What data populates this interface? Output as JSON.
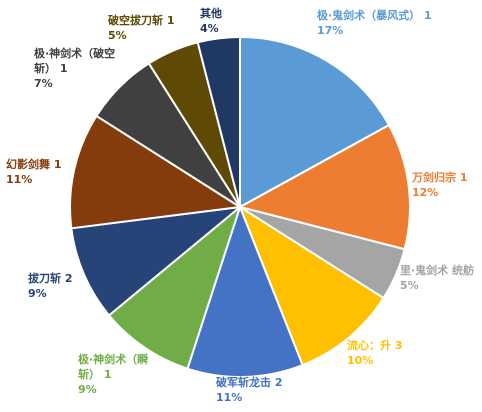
{
  "chart_data": {
    "type": "pie",
    "title": "",
    "slices": [
      {
        "label": "极·鬼剑术（暴风式）",
        "count": "1",
        "percent": "17%",
        "value": 17,
        "color": "#5B9BD5",
        "label_color": "#5B9BD5"
      },
      {
        "label": "万剑归宗",
        "count": "1",
        "percent": "12%",
        "value": 12,
        "color": "#ED7D31",
        "label_color": "#ED7D31"
      },
      {
        "label": "里·鬼剑术 统舫",
        "count": "",
        "percent": "5%",
        "value": 5,
        "color": "#A5A5A5",
        "label_color": "#A5A5A5"
      },
      {
        "label": "流心：升",
        "count": "3",
        "percent": "10%",
        "value": 10,
        "color": "#FFC000",
        "label_color": "#FFC000"
      },
      {
        "label": "破军斩龙击",
        "count": "2",
        "percent": "11%",
        "value": 11,
        "color": "#4472C4",
        "label_color": "#4472C4"
      },
      {
        "label": "极·神剑术（瞬斩）",
        "count": "1",
        "percent": "9%",
        "value": 9,
        "color": "#70AD47",
        "label_color": "#70AD47"
      },
      {
        "label": "拔刀斩",
        "count": "2",
        "percent": "9%",
        "value": 9,
        "color": "#264478",
        "label_color": "#264478"
      },
      {
        "label": "幻影剑舞",
        "count": "1",
        "percent": "11%",
        "value": 11,
        "color": "#843C0C",
        "label_color": "#843C0C"
      },
      {
        "label": "极·神剑术（破空斩）",
        "count": "1",
        "percent": "7%",
        "value": 7,
        "color": "#404040",
        "label_color": "#404040"
      },
      {
        "label": "破空拔刀斩",
        "count": "1",
        "percent": "5%",
        "value": 5,
        "color": "#5E4A04",
        "label_color": "#5E4A04"
      },
      {
        "label": "其他",
        "count": "",
        "percent": "4%",
        "value": 4,
        "color": "#203864",
        "label_color": "#203864"
      }
    ]
  }
}
